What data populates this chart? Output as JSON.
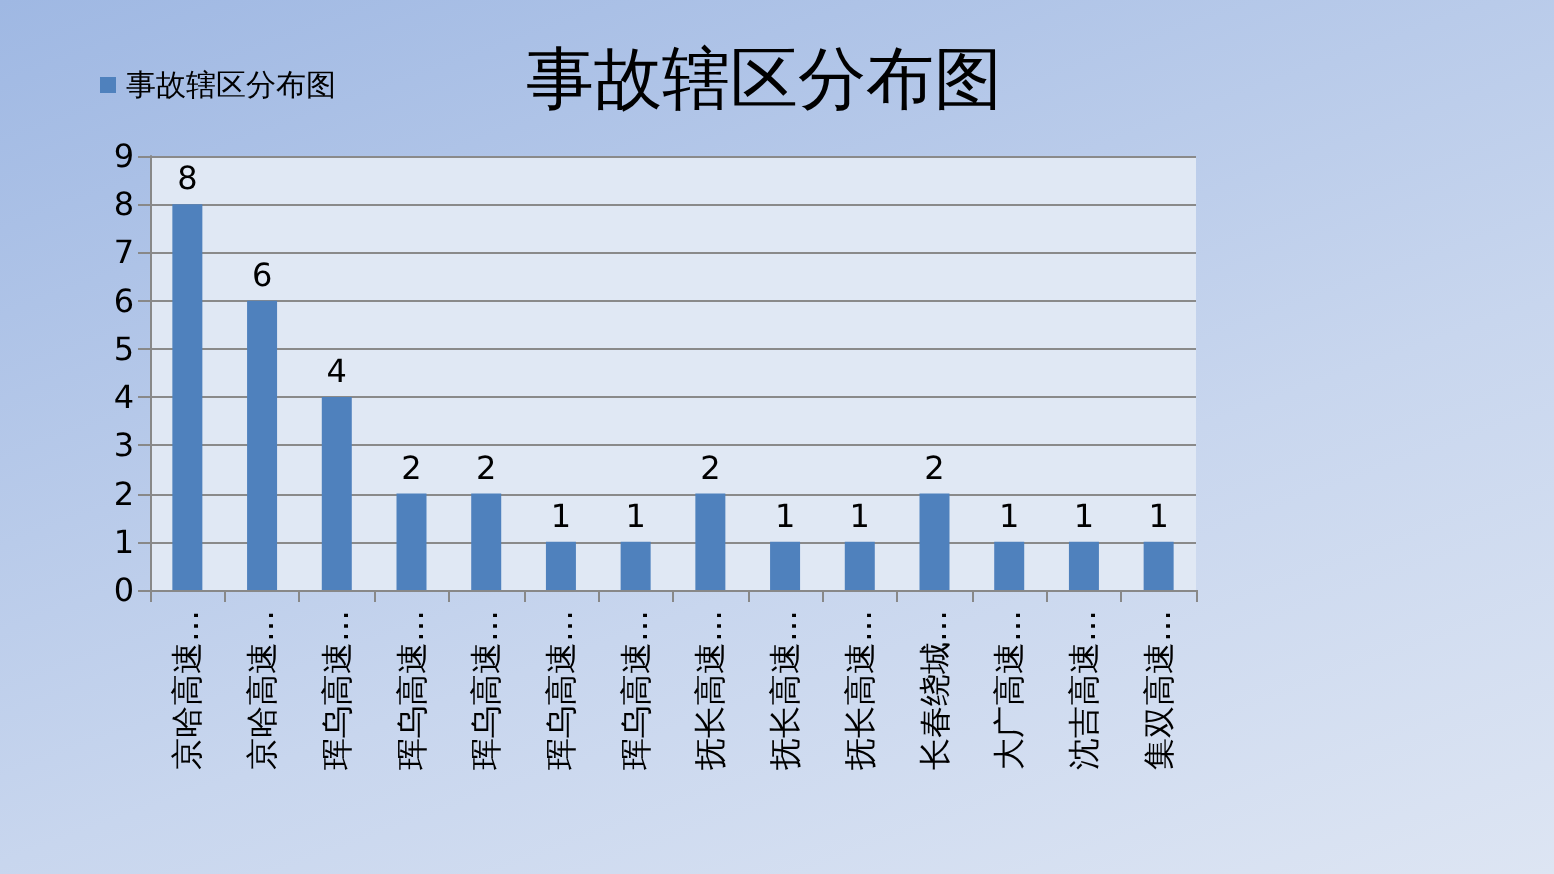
{
  "chart_data": {
    "type": "bar",
    "title": "事故辖区分布图",
    "categories": [
      "京哈高速…",
      "京哈高速…",
      "珲乌高速…",
      "珲乌高速…",
      "珲乌高速…",
      "珲乌高速…",
      "珲乌高速…",
      "抚长高速…",
      "抚长高速…",
      "抚长高速…",
      "长春绕城…",
      "大广高速…",
      "沈吉高速…",
      "集双高速…"
    ],
    "series": [
      {
        "name": "事故辖区分布图",
        "color": "#4f81bd",
        "values": [
          8,
          6,
          4,
          2,
          2,
          1,
          1,
          2,
          1,
          1,
          2,
          1,
          1,
          1
        ]
      }
    ],
    "ylim": [
      0,
      9
    ],
    "yticks": [
      0,
      1,
      2,
      3,
      4,
      5,
      6,
      7,
      8,
      9
    ],
    "grid": "y",
    "legend": "top left",
    "data_labels": true
  }
}
